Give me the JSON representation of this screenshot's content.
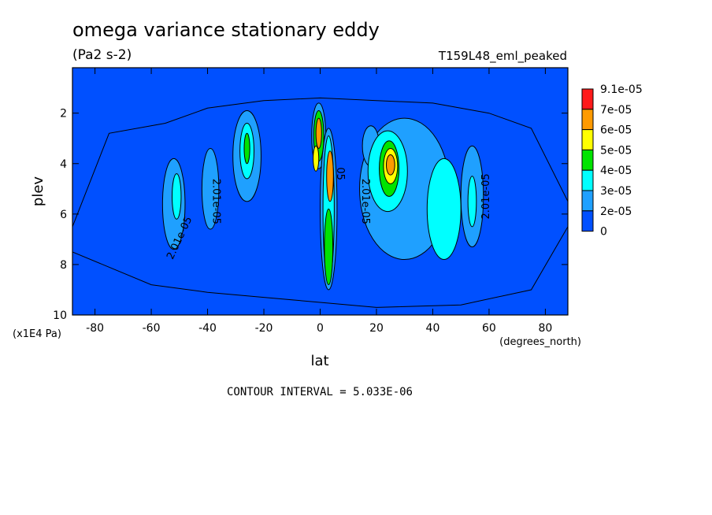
{
  "chart_data": {
    "type": "heatmap",
    "title": "omega variance stationary eddy",
    "units": "(Pa2 s-2)",
    "experiment": "T159L48_eml_peaked",
    "xlabel": "lat",
    "x_units": "(degrees_north)",
    "ylabel": "plev",
    "y_units": "(x1E4 Pa)",
    "xlim": [
      -88,
      88
    ],
    "ylim": [
      10,
      0.2
    ],
    "x_ticks": [
      -80,
      -60,
      -40,
      -20,
      0,
      20,
      40,
      60,
      80
    ],
    "x_tick_labels": [
      "-80",
      "-60",
      "-40",
      "-20",
      "0",
      "20",
      "40",
      "60",
      "80"
    ],
    "y_ticks": [
      2,
      4,
      6,
      8,
      10
    ],
    "y_tick_labels": [
      "2",
      "4",
      "6",
      "8",
      "10"
    ],
    "contour_interval": "CONTOUR INTERVAL = 5.033E-06",
    "contour_labels": [
      {
        "text": "2.01e-05",
        "lat": -38,
        "plev": 5.5,
        "angle": 90
      },
      {
        "text": "2.01e-05",
        "lat": -49,
        "plev": 7.0,
        "angle": -65
      },
      {
        "text": "2.01e-05",
        "lat": 15,
        "plev": 5.5,
        "angle": 90
      },
      {
        "text": "2.01e-05",
        "lat": 60,
        "plev": 5.3,
        "angle": -90
      },
      {
        "text": "05",
        "lat": 6,
        "plev": 4.4,
        "angle": 90
      }
    ],
    "legend": {
      "placement": "right",
      "levels": [
        "9.1e-05",
        "7e-05",
        "6e-05",
        "5e-05",
        "4e-05",
        "3e-05",
        "2e-05",
        "0"
      ],
      "colors": [
        "#ff1a1a",
        "#ff9a00",
        "#ffff00",
        "#00e400",
        "#00ffff",
        "#1fa0ff",
        "#0050ff"
      ]
    },
    "blobs": [
      {
        "lat": -52,
        "plev": 5.6,
        "rlat": 4,
        "rp": 1.8,
        "level": 1
      },
      {
        "lat": -51,
        "plev": 5.3,
        "rlat": 1.6,
        "rp": 0.9,
        "level": 2
      },
      {
        "lat": -39,
        "plev": 5.0,
        "rlat": 3,
        "rp": 1.6,
        "level": 1
      },
      {
        "lat": -26,
        "plev": 3.7,
        "rlat": 5,
        "rp": 1.8,
        "level": 1
      },
      {
        "lat": -26,
        "plev": 3.5,
        "rlat": 2.5,
        "rp": 1.1,
        "level": 2
      },
      {
        "lat": -26,
        "plev": 3.4,
        "rlat": 1,
        "rp": 0.6,
        "level": 3
      },
      {
        "lat": -0.5,
        "plev": 2.9,
        "rlat": 2.5,
        "rp": 1.3,
        "level": 1
      },
      {
        "lat": -0.5,
        "plev": 2.9,
        "rlat": 1.8,
        "rp": 1.0,
        "level": 3
      },
      {
        "lat": -0.5,
        "plev": 2.8,
        "rlat": 1.0,
        "rp": 0.6,
        "level": 5
      },
      {
        "lat": -1.5,
        "plev": 3.8,
        "rlat": 1.0,
        "rp": 0.5,
        "level": 4
      },
      {
        "lat": 3,
        "plev": 5.8,
        "rlat": 3,
        "rp": 3.2,
        "level": 1
      },
      {
        "lat": 3,
        "plev": 5.8,
        "rlat": 2.0,
        "rp": 2.9,
        "level": 2
      },
      {
        "lat": 3.5,
        "plev": 4.5,
        "rlat": 1.2,
        "rp": 1.0,
        "level": 5
      },
      {
        "lat": 3,
        "plev": 7.3,
        "rlat": 1.5,
        "rp": 1.5,
        "level": 3
      },
      {
        "lat": 30,
        "plev": 5.0,
        "rlat": 16,
        "rp": 2.8,
        "level": 1
      },
      {
        "lat": 24,
        "plev": 4.3,
        "rlat": 7,
        "rp": 1.6,
        "level": 2
      },
      {
        "lat": 24.5,
        "plev": 4.2,
        "rlat": 3.5,
        "rp": 1.1,
        "level": 3
      },
      {
        "lat": 25,
        "plev": 4.1,
        "rlat": 2.5,
        "rp": 0.7,
        "level": 4
      },
      {
        "lat": 25,
        "plev": 4.05,
        "rlat": 1.5,
        "rp": 0.4,
        "level": 5
      },
      {
        "lat": 18,
        "plev": 3.3,
        "rlat": 3,
        "rp": 0.8,
        "level": 1
      },
      {
        "lat": 44,
        "plev": 5.8,
        "rlat": 6,
        "rp": 2.0,
        "level": 2
      },
      {
        "lat": 54,
        "plev": 5.3,
        "rlat": 4,
        "rp": 2.0,
        "level": 1
      },
      {
        "lat": 54,
        "plev": 5.5,
        "rlat": 1.5,
        "rp": 1.0,
        "level": 2
      }
    ]
  }
}
